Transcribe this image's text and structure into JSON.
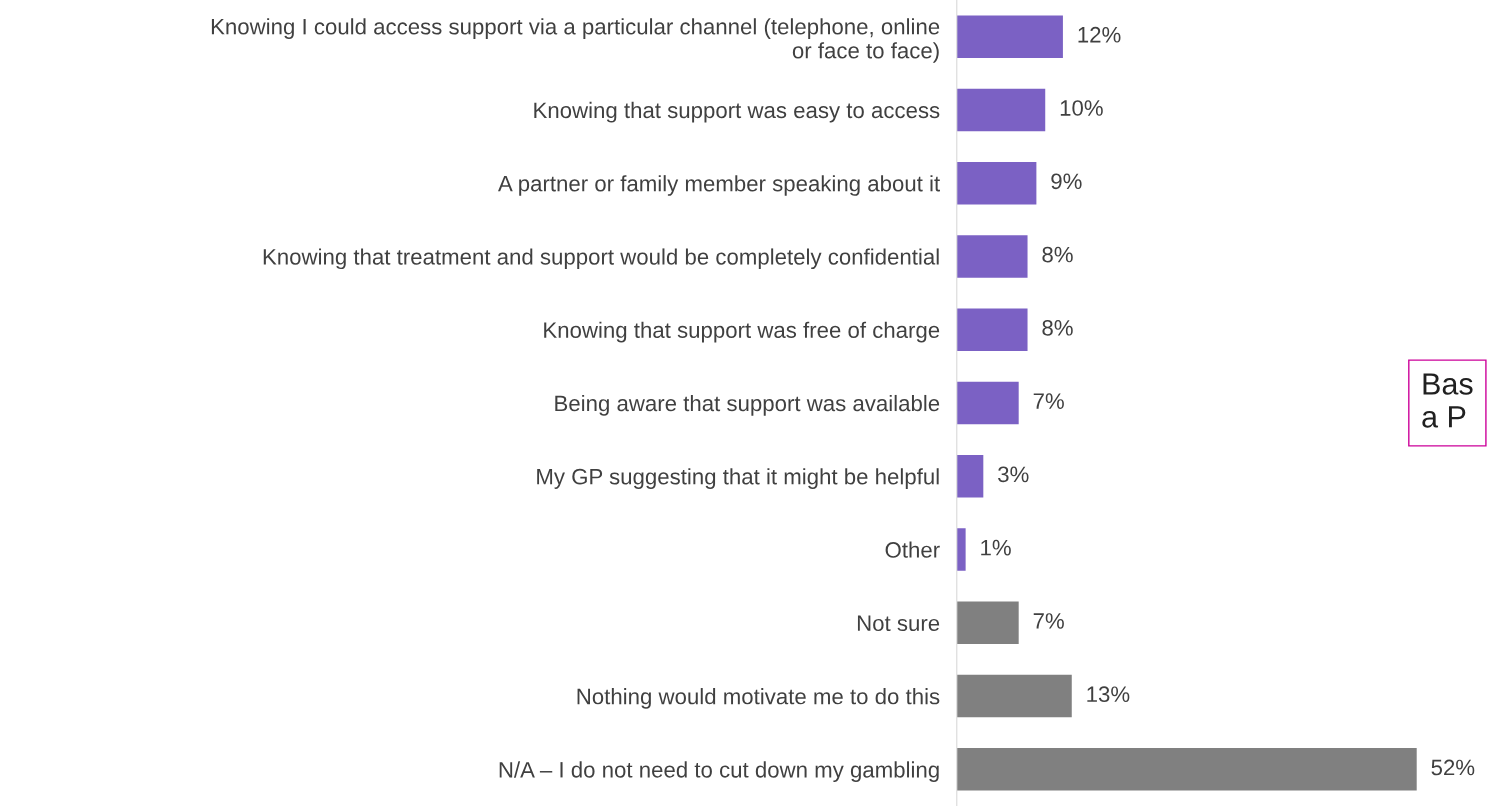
{
  "chart_data": {
    "type": "bar",
    "orientation": "horizontal",
    "categories": [
      "Knowing I could access support via a particular channel (telephone, online\nor face to face)",
      "Knowing that support was easy to access",
      "A partner or family member speaking about it",
      "Knowing that treatment and support would be completely confidential",
      "Knowing that support was free of charge",
      "Being aware that support was available",
      "My GP suggesting that it might be helpful",
      "Other",
      "Not sure",
      "Nothing would motivate me to do this",
      "N/A – I do not need to cut down my gambling"
    ],
    "values": [
      12,
      10,
      9,
      8,
      8,
      7,
      3,
      1,
      7,
      13,
      52
    ],
    "value_labels": [
      "12%",
      "10%",
      "9%",
      "8%",
      "8%",
      "7%",
      "3%",
      "1%",
      "7%",
      "13%",
      "52%"
    ],
    "colors": [
      "#7b61c4",
      "#7b61c4",
      "#7b61c4",
      "#7b61c4",
      "#7b61c4",
      "#7b61c4",
      "#7b61c4",
      "#7b61c4",
      "#808080",
      "#808080",
      "#808080"
    ],
    "annotations": [
      "Bas\na P"
    ],
    "grid": false,
    "legend": false
  }
}
